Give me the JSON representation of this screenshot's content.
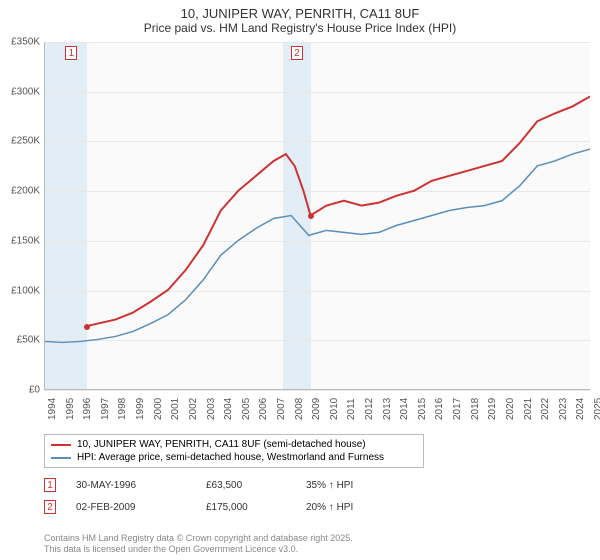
{
  "title_line1": "10, JUNIPER WAY, PENRITH, CA11 8UF",
  "title_line2": "Price paid vs. HM Land Registry's House Price Index (HPI)",
  "chart": {
    "type": "line",
    "background_color": "#fafafa",
    "grid_color": "#e8e8e8",
    "axis_color": "#bbbbbb",
    "text_color": "#555555",
    "ylim": [
      0,
      350000
    ],
    "ytick_step": 50000,
    "y_tick_labels": [
      "£0",
      "£50K",
      "£100K",
      "£150K",
      "£200K",
      "£250K",
      "£300K",
      "£350K"
    ],
    "x_years": [
      1994,
      1995,
      1996,
      1997,
      1998,
      1999,
      2000,
      2001,
      2002,
      2003,
      2004,
      2005,
      2006,
      2007,
      2008,
      2009,
      2010,
      2011,
      2012,
      2013,
      2014,
      2015,
      2016,
      2017,
      2018,
      2019,
      2020,
      2021,
      2022,
      2023,
      2024,
      2025
    ],
    "shaded_regions": [
      {
        "from_year": 1994,
        "to_year": 1996.4,
        "color": "#e3edf5"
      },
      {
        "from_year": 2007.5,
        "to_year": 2009.1,
        "color": "#e3edf5"
      }
    ],
    "series": [
      {
        "name": "price_paid",
        "label": "10, JUNIPER WAY, PENRITH, CA11 8UF (semi-detached house)",
        "color": "#cc3333",
        "line_width": 2,
        "points": [
          [
            1996.4,
            63500
          ],
          [
            1997,
            66000
          ],
          [
            1998,
            70000
          ],
          [
            1999,
            77000
          ],
          [
            2000,
            88000
          ],
          [
            2001,
            100000
          ],
          [
            2002,
            120000
          ],
          [
            2003,
            145000
          ],
          [
            2004,
            180000
          ],
          [
            2005,
            200000
          ],
          [
            2006,
            215000
          ],
          [
            2007,
            230000
          ],
          [
            2007.7,
            237000
          ],
          [
            2008.2,
            225000
          ],
          [
            2008.7,
            200000
          ],
          [
            2009.1,
            175000
          ],
          [
            2010,
            185000
          ],
          [
            2011,
            190000
          ],
          [
            2012,
            185000
          ],
          [
            2013,
            188000
          ],
          [
            2014,
            195000
          ],
          [
            2015,
            200000
          ],
          [
            2016,
            210000
          ],
          [
            2017,
            215000
          ],
          [
            2018,
            220000
          ],
          [
            2019,
            225000
          ],
          [
            2020,
            230000
          ],
          [
            2021,
            248000
          ],
          [
            2022,
            270000
          ],
          [
            2023,
            278000
          ],
          [
            2024,
            285000
          ],
          [
            2025,
            295000
          ]
        ]
      },
      {
        "name": "hpi",
        "label": "HPI: Average price, semi-detached house, Westmorland and Furness",
        "color": "#5b8fb9",
        "line_width": 1.5,
        "points": [
          [
            1994,
            48000
          ],
          [
            1995,
            47000
          ],
          [
            1996,
            48000
          ],
          [
            1997,
            50000
          ],
          [
            1998,
            53000
          ],
          [
            1999,
            58000
          ],
          [
            2000,
            66000
          ],
          [
            2001,
            75000
          ],
          [
            2002,
            90000
          ],
          [
            2003,
            110000
          ],
          [
            2004,
            135000
          ],
          [
            2005,
            150000
          ],
          [
            2006,
            162000
          ],
          [
            2007,
            172000
          ],
          [
            2008,
            175000
          ],
          [
            2009,
            155000
          ],
          [
            2010,
            160000
          ],
          [
            2011,
            158000
          ],
          [
            2012,
            156000
          ],
          [
            2013,
            158000
          ],
          [
            2014,
            165000
          ],
          [
            2015,
            170000
          ],
          [
            2016,
            175000
          ],
          [
            2017,
            180000
          ],
          [
            2018,
            183000
          ],
          [
            2019,
            185000
          ],
          [
            2020,
            190000
          ],
          [
            2021,
            205000
          ],
          [
            2022,
            225000
          ],
          [
            2023,
            230000
          ],
          [
            2024,
            237000
          ],
          [
            2025,
            242000
          ]
        ]
      }
    ],
    "sale_markers": [
      {
        "num": "1",
        "year": 1996.4,
        "price": 63500,
        "box_year": 1995.5
      },
      {
        "num": "2",
        "year": 2009.1,
        "price": 175000,
        "box_year": 2008.3
      }
    ]
  },
  "legend": {
    "border_color": "#bbbbbb"
  },
  "sales_table": [
    {
      "num": "1",
      "date": "30-MAY-1996",
      "price": "£63,500",
      "diff": "35% ↑ HPI"
    },
    {
      "num": "2",
      "date": "02-FEB-2009",
      "price": "£175,000",
      "diff": "20% ↑ HPI"
    }
  ],
  "footnote_line1": "Contains HM Land Registry data © Crown copyright and database right 2025.",
  "footnote_line2": "This data is licensed under the Open Government Licence v3.0."
}
